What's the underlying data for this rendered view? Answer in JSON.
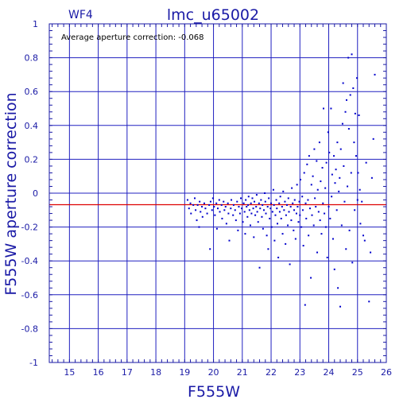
{
  "colors": {
    "axis": "#1a1aa6",
    "grid": "#2020c0",
    "points": "#0000cc",
    "mean_line": "#dd0000",
    "note": "#000000"
  },
  "chart_data": {
    "type": "scatter",
    "title": "lmc_u65002",
    "panel_label": "WF4",
    "annotation": "Average aperture correction: -0.068",
    "xlabel": "F555W",
    "ylabel": "F555W aperture correction",
    "xlim": [
      14.3,
      26
    ],
    "ylim": [
      -1,
      1
    ],
    "xticks": [
      15,
      16,
      17,
      18,
      19,
      20,
      21,
      22,
      23,
      24,
      25,
      26
    ],
    "yticks": [
      -1,
      -0.8,
      -0.6,
      -0.4,
      -0.2,
      0,
      0.2,
      0.4,
      0.6,
      0.8,
      1
    ],
    "ytick_labels": [
      "-1",
      "-0.8",
      "-0.6",
      "-0.4",
      "-0.2",
      "0",
      "0.2",
      "0.4",
      "0.6",
      "0.8",
      "1"
    ],
    "grid": true,
    "mean_line_y": -0.068,
    "points": [
      [
        19.1,
        -0.04
      ],
      [
        19.15,
        -0.09
      ],
      [
        19.2,
        -0.06
      ],
      [
        19.22,
        -0.12
      ],
      [
        19.3,
        -0.07
      ],
      [
        19.35,
        -0.03
      ],
      [
        19.38,
        -0.1
      ],
      [
        19.42,
        -0.16
      ],
      [
        19.45,
        -0.07
      ],
      [
        19.5,
        -0.2
      ],
      [
        19.52,
        -0.05
      ],
      [
        19.55,
        -0.11
      ],
      [
        19.6,
        -0.08
      ],
      [
        19.62,
        -0.14
      ],
      [
        19.68,
        -0.06
      ],
      [
        19.72,
        -0.09
      ],
      [
        19.78,
        -0.12
      ],
      [
        19.85,
        -0.07
      ],
      [
        19.88,
        -0.33
      ],
      [
        19.9,
        -0.05
      ],
      [
        19.95,
        -0.1
      ],
      [
        19.98,
        -0.03
      ],
      [
        20.02,
        -0.08
      ],
      [
        20.05,
        -0.13
      ],
      [
        20.1,
        -0.06
      ],
      [
        20.12,
        -0.21
      ],
      [
        20.15,
        -0.09
      ],
      [
        20.2,
        -0.04
      ],
      [
        20.22,
        -0.11
      ],
      [
        20.28,
        -0.07
      ],
      [
        20.3,
        -0.15
      ],
      [
        20.35,
        -0.05
      ],
      [
        20.38,
        -0.1
      ],
      [
        20.42,
        -0.08
      ],
      [
        20.45,
        -0.18
      ],
      [
        20.5,
        -0.06
      ],
      [
        20.52,
        -0.12
      ],
      [
        20.55,
        -0.28
      ],
      [
        20.6,
        -0.09
      ],
      [
        20.62,
        -0.04
      ],
      [
        20.68,
        -0.13
      ],
      [
        20.7,
        -0.07
      ],
      [
        20.75,
        -0.1
      ],
      [
        20.78,
        -0.16
      ],
      [
        20.82,
        -0.05
      ],
      [
        20.85,
        -0.22
      ],
      [
        20.88,
        -0.08
      ],
      [
        20.92,
        -0.12
      ],
      [
        20.95,
        -0.03
      ],
      [
        20.98,
        -0.09
      ],
      [
        21.02,
        -0.17
      ],
      [
        21.05,
        -0.06
      ],
      [
        21.08,
        -0.11
      ],
      [
        21.1,
        -0.24
      ],
      [
        21.12,
        -0.04
      ],
      [
        21.15,
        -0.08
      ],
      [
        21.18,
        -0.14
      ],
      [
        21.2,
        -0.07
      ],
      [
        21.22,
        -0.02
      ],
      [
        21.25,
        -0.1
      ],
      [
        21.28,
        -0.19
      ],
      [
        21.3,
        -0.06
      ],
      [
        21.32,
        -0.12
      ],
      [
        21.35,
        -0.03
      ],
      [
        21.38,
        -0.09
      ],
      [
        21.4,
        -0.26
      ],
      [
        21.42,
        -0.05
      ],
      [
        21.45,
        -0.13
      ],
      [
        21.48,
        -0.08
      ],
      [
        21.5,
        -0.01
      ],
      [
        21.52,
        -0.11
      ],
      [
        21.55,
        -0.17
      ],
      [
        21.58,
        -0.06
      ],
      [
        21.6,
        -0.44
      ],
      [
        21.62,
        -0.09
      ],
      [
        21.65,
        -0.04
      ],
      [
        21.68,
        -0.14
      ],
      [
        21.7,
        -0.07
      ],
      [
        21.72,
        -0.21
      ],
      [
        21.75,
        -0.1
      ],
      [
        21.78,
        0.0
      ],
      [
        21.8,
        -0.05
      ],
      [
        21.82,
        -0.12
      ],
      [
        21.85,
        -0.25
      ],
      [
        21.88,
        -0.08
      ],
      [
        21.9,
        -0.33
      ],
      [
        21.92,
        -0.03
      ],
      [
        21.95,
        -0.15
      ],
      [
        21.98,
        -0.09
      ],
      [
        22.0,
        -0.06
      ],
      [
        22.02,
        -0.2
      ],
      [
        22.05,
        -0.11
      ],
      [
        22.08,
        0.02
      ],
      [
        22.1,
        -0.07
      ],
      [
        22.12,
        -0.28
      ],
      [
        22.15,
        -0.13
      ],
      [
        22.18,
        -0.04
      ],
      [
        22.2,
        -0.09
      ],
      [
        22.22,
        -0.18
      ],
      [
        22.25,
        -0.38
      ],
      [
        22.28,
        -0.06
      ],
      [
        22.3,
        -0.11
      ],
      [
        22.32,
        -0.02
      ],
      [
        22.35,
        -0.15
      ],
      [
        22.38,
        -0.08
      ],
      [
        22.4,
        -0.24
      ],
      [
        22.42,
        0.01
      ],
      [
        22.45,
        -0.1
      ],
      [
        22.48,
        -0.05
      ],
      [
        22.5,
        -0.3
      ],
      [
        22.52,
        -0.13
      ],
      [
        22.55,
        -0.07
      ],
      [
        22.58,
        -0.19
      ],
      [
        22.6,
        -0.03
      ],
      [
        22.62,
        -0.11
      ],
      [
        22.65,
        -0.42
      ],
      [
        22.68,
        -0.08
      ],
      [
        22.7,
        -0.16
      ],
      [
        22.72,
        0.03
      ],
      [
        22.75,
        -0.06
      ],
      [
        22.78,
        -0.22
      ],
      [
        22.8,
        -0.1
      ],
      [
        22.82,
        -0.04
      ],
      [
        22.85,
        -0.27
      ],
      [
        22.88,
        -0.12
      ],
      [
        22.9,
        0.05
      ],
      [
        22.92,
        -0.08
      ],
      [
        22.95,
        -0.17
      ],
      [
        22.98,
        -0.05
      ],
      [
        23.0,
        -0.13
      ],
      [
        23.02,
        0.08
      ],
      [
        23.05,
        -0.2
      ],
      [
        23.08,
        -0.02
      ],
      [
        23.1,
        -0.1
      ],
      [
        23.12,
        -0.31
      ],
      [
        23.15,
        0.12
      ],
      [
        23.18,
        -0.66
      ],
      [
        23.2,
        -0.06
      ],
      [
        23.22,
        -0.15
      ],
      [
        23.25,
        0.17
      ],
      [
        23.28,
        -0.04
      ],
      [
        23.3,
        -0.25
      ],
      [
        23.32,
        0.22
      ],
      [
        23.35,
        -0.09
      ],
      [
        23.38,
        -0.5
      ],
      [
        23.4,
        0.05
      ],
      [
        23.42,
        -0.13
      ],
      [
        23.45,
        0.1
      ],
      [
        23.48,
        -0.19
      ],
      [
        23.5,
        0.26
      ],
      [
        23.52,
        -0.03
      ],
      [
        23.55,
        -0.08
      ],
      [
        23.58,
        0.19
      ],
      [
        23.6,
        -0.35
      ],
      [
        23.62,
        0.02
      ],
      [
        23.65,
        -0.11
      ],
      [
        23.68,
        0.3
      ],
      [
        23.7,
        -0.16
      ],
      [
        23.72,
        0.07
      ],
      [
        23.75,
        -0.24
      ],
      [
        23.78,
        0.15
      ],
      [
        23.8,
        -0.06
      ],
      [
        23.82,
        0.5
      ],
      [
        23.85,
        -0.12
      ],
      [
        23.88,
        0.03
      ],
      [
        23.9,
        -0.2
      ],
      [
        23.92,
        0.18
      ],
      [
        23.95,
        -0.38
      ],
      [
        23.98,
        0.36
      ],
      [
        24.0,
        -0.08
      ],
      [
        24.02,
        0.24
      ],
      [
        24.05,
        -0.15
      ],
      [
        24.08,
        0.5
      ],
      [
        24.1,
        -0.02
      ],
      [
        24.12,
        0.11
      ],
      [
        24.15,
        -0.27
      ],
      [
        24.18,
        0.22
      ],
      [
        24.2,
        -0.45
      ],
      [
        24.22,
        0.06
      ],
      [
        24.25,
        0.14
      ],
      [
        24.28,
        -0.1
      ],
      [
        24.3,
        0.3
      ],
      [
        24.32,
        -0.56
      ],
      [
        24.35,
        0.01
      ],
      [
        24.38,
        0.09
      ],
      [
        24.4,
        -0.67
      ],
      [
        24.42,
        0.26
      ],
      [
        24.45,
        -0.19
      ],
      [
        24.48,
        0.41
      ],
      [
        24.5,
        0.65
      ],
      [
        24.52,
        0.16
      ],
      [
        24.55,
        -0.05
      ],
      [
        24.58,
        0.48
      ],
      [
        24.6,
        -0.33
      ],
      [
        24.62,
        0.55
      ],
      [
        24.65,
        0.04
      ],
      [
        24.68,
        0.8
      ],
      [
        24.7,
        0.38
      ],
      [
        24.72,
        -0.22
      ],
      [
        24.75,
        0.58
      ],
      [
        24.78,
        0.12
      ],
      [
        24.8,
        0.82
      ],
      [
        24.82,
        -0.41
      ],
      [
        24.85,
        0.62
      ],
      [
        24.88,
        0.3
      ],
      [
        24.9,
        -0.1
      ],
      [
        24.92,
        0.47
      ],
      [
        24.95,
        0.22
      ],
      [
        24.98,
        0.68
      ],
      [
        25.0,
        -0.04
      ],
      [
        25.02,
        0.12
      ],
      [
        25.05,
        0.46
      ],
      [
        25.08,
        0.02
      ],
      [
        25.1,
        -0.18
      ],
      [
        25.15,
        -0.05
      ],
      [
        25.2,
        -0.25
      ],
      [
        25.25,
        -0.28
      ],
      [
        25.3,
        0.18
      ],
      [
        25.4,
        -0.64
      ],
      [
        25.45,
        -0.35
      ],
      [
        25.5,
        0.09
      ],
      [
        25.55,
        0.32
      ],
      [
        25.6,
        0.7
      ]
    ]
  }
}
